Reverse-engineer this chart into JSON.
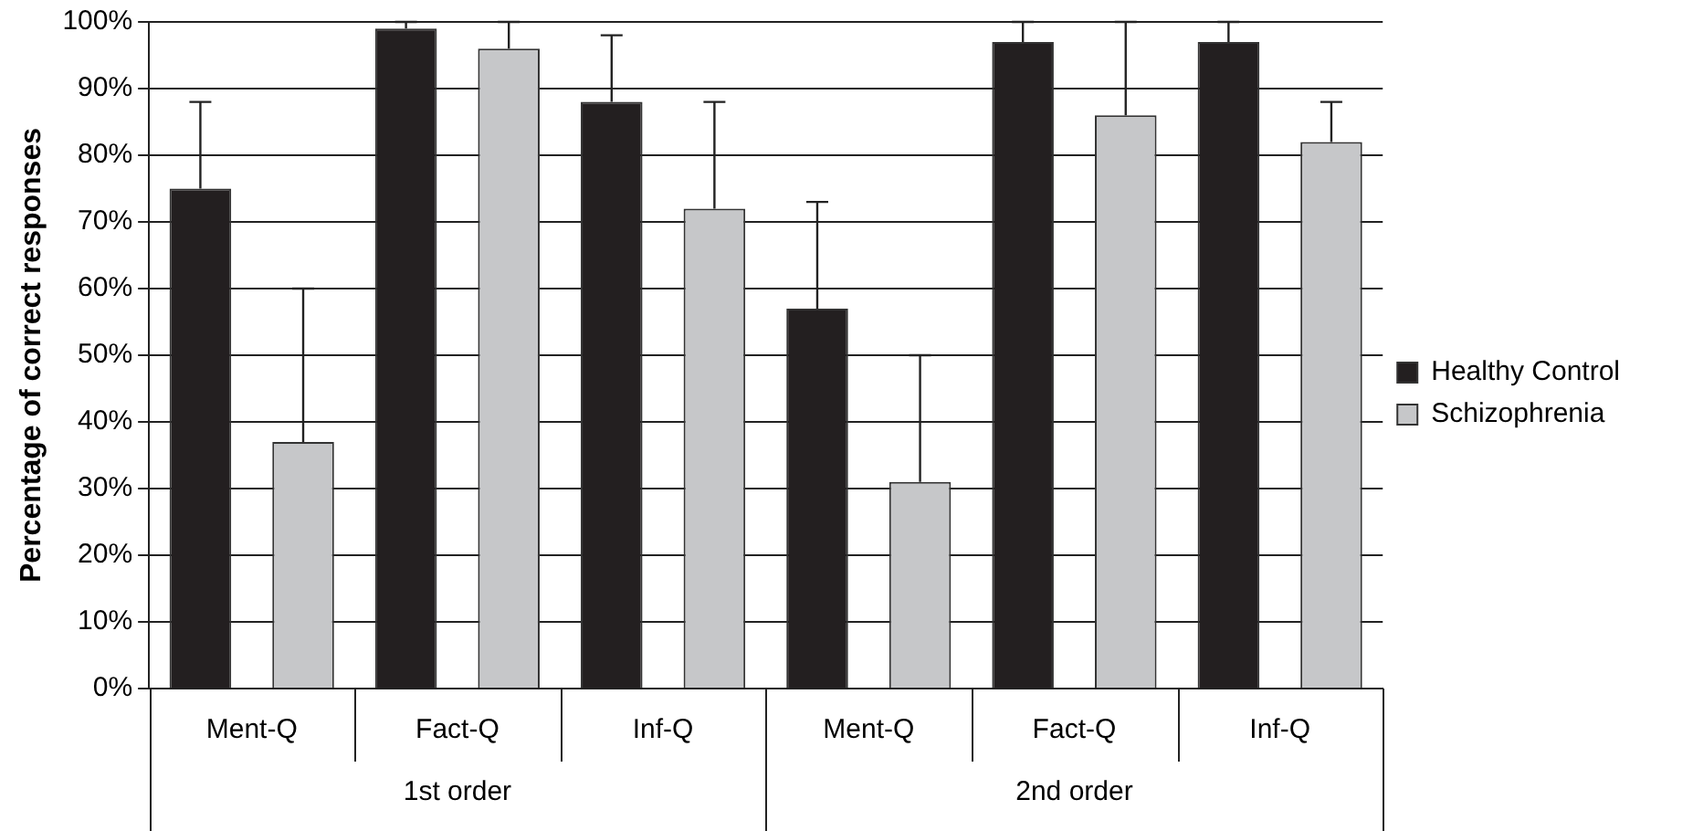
{
  "chart_data": {
    "type": "bar",
    "ylabel": "Percentage of correct responses",
    "categories": [
      "Ment-Q",
      "Fact-Q",
      "Inf-Q",
      "Ment-Q",
      "Fact-Q",
      "Inf-Q"
    ],
    "annotations": [
      "1st order",
      "2nd order"
    ],
    "series": [
      {
        "name": "Healthy Control",
        "color": "#231f20",
        "values": [
          75,
          99,
          88,
          57,
          97,
          97
        ],
        "errors": [
          [
            75,
            88
          ],
          [
            99,
            100
          ],
          [
            88,
            98
          ],
          [
            57,
            73
          ],
          [
            97,
            100
          ],
          [
            97,
            100
          ]
        ]
      },
      {
        "name": "Schizophrenia",
        "color": "#c6c7c9",
        "values": [
          37,
          96,
          72,
          31,
          86,
          82
        ],
        "errors": [
          [
            37,
            60
          ],
          [
            96,
            100
          ],
          [
            72,
            88
          ],
          [
            31,
            50
          ],
          [
            86,
            100
          ],
          [
            82,
            88
          ]
        ]
      }
    ],
    "ylim": [
      0,
      100
    ],
    "yticks": [
      {
        "value": 0,
        "label": "0%"
      },
      {
        "value": 10,
        "label": "10%"
      },
      {
        "value": 20,
        "label": "20%"
      },
      {
        "value": 30,
        "label": "30%"
      },
      {
        "value": 40,
        "label": "40%"
      },
      {
        "value": 50,
        "label": "50%"
      },
      {
        "value": 60,
        "label": "60%"
      },
      {
        "value": 70,
        "label": "70%"
      },
      {
        "value": 80,
        "label": "80%"
      },
      {
        "value": 90,
        "label": "90%"
      },
      {
        "value": 100,
        "label": "100%"
      }
    ],
    "grid": "y",
    "legend": "right"
  }
}
